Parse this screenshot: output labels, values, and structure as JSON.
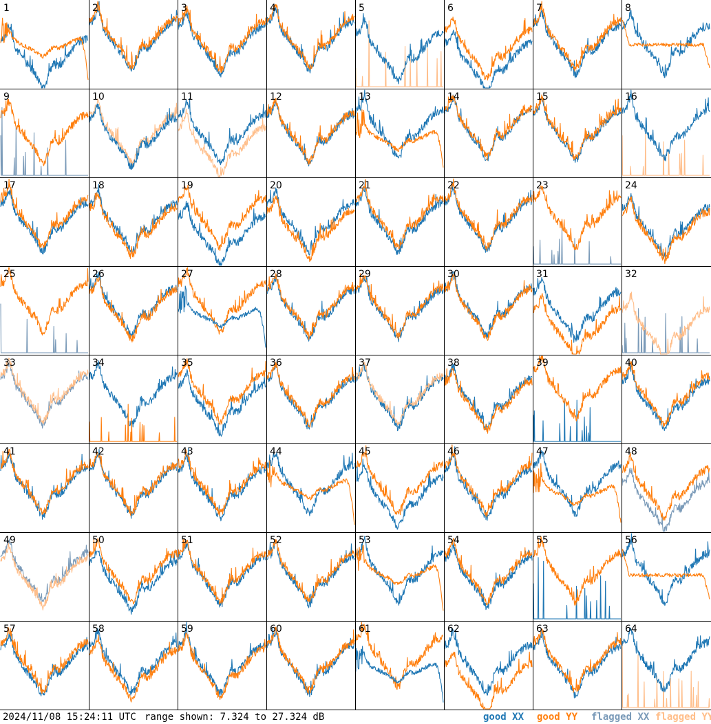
{
  "footer": {
    "timestamp": "2024/11/08 15:24:11 UTC",
    "range_text": "range shown: 7.324 to 27.324 dB"
  },
  "legend": [
    {
      "word": "good",
      "pol": "XX",
      "color": "#1f77b4"
    },
    {
      "word": "good",
      "pol": "YY",
      "color": "#ff7f0e"
    },
    {
      "word": "flagged",
      "pol": "XX",
      "color": "#7a9ab8"
    },
    {
      "word": "flagged",
      "pol": "YY",
      "color": "#ffbe8a"
    }
  ],
  "chart_data": {
    "type": "line",
    "layout": "8x8 small multiples of bandpass spectra",
    "y_range_db": [
      7.324,
      27.324
    ],
    "grid": false,
    "panels": [
      {
        "n": "1",
        "xx": {
          "s": "good",
          "p": "normal",
          "lvl": 0.35
        },
        "yy": {
          "s": "good",
          "p": "dropout",
          "lvl": 0.5
        },
        "top": "yy"
      },
      {
        "n": "2",
        "xx": {
          "s": "good",
          "p": "normal",
          "lvl": 0.55
        },
        "yy": {
          "s": "good",
          "p": "normal",
          "lvl": 0.58
        },
        "top": "yy"
      },
      {
        "n": "3",
        "xx": {
          "s": "good",
          "p": "normal",
          "lvl": 0.5
        },
        "yy": {
          "s": "good",
          "p": "normal",
          "lvl": 0.55
        },
        "top": "yy"
      },
      {
        "n": "4",
        "xx": {
          "s": "good",
          "p": "normal",
          "lvl": 0.55
        },
        "yy": {
          "s": "good",
          "p": "normal",
          "lvl": 0.58
        },
        "top": "yy"
      },
      {
        "n": "5",
        "xx": {
          "s": "good",
          "p": "normal",
          "lvl": 0.42
        },
        "yy": {
          "s": "flagged",
          "p": "spikes"
        },
        "top": "xx"
      },
      {
        "n": "6",
        "xx": {
          "s": "good",
          "p": "normal",
          "lvl": 0.3
        },
        "yy": {
          "s": "good",
          "p": "normal",
          "lvl": 0.45
        },
        "top": "yy"
      },
      {
        "n": "7",
        "xx": {
          "s": "good",
          "p": "normal",
          "lvl": 0.5
        },
        "yy": {
          "s": "good",
          "p": "normal",
          "lvl": 0.55
        },
        "top": "yy"
      },
      {
        "n": "8",
        "xx": {
          "s": "good",
          "p": "normal",
          "lvl": 0.5
        },
        "yy": {
          "s": "good",
          "p": "flat",
          "lvl": 0.5
        },
        "top": "yy"
      },
      {
        "n": "9",
        "xx": {
          "s": "flagged",
          "p": "spikes"
        },
        "yy": {
          "s": "good",
          "p": "normal",
          "lvl": 0.5
        },
        "top": "yy"
      },
      {
        "n": "10",
        "xx": {
          "s": "good",
          "p": "normal",
          "lvl": 0.45
        },
        "yy": {
          "s": "flagged",
          "p": "normal",
          "lvl": 0.5
        },
        "top": "xx"
      },
      {
        "n": "11",
        "xx": {
          "s": "good",
          "p": "normal",
          "lvl": 0.5
        },
        "yy": {
          "s": "flagged",
          "p": "normal",
          "lvl": 0.35
        },
        "top": "xx"
      },
      {
        "n": "12",
        "xx": {
          "s": "good",
          "p": "normal",
          "lvl": 0.5
        },
        "yy": {
          "s": "good",
          "p": "normal",
          "lvl": 0.52
        },
        "top": "yy"
      },
      {
        "n": "13",
        "xx": {
          "s": "good",
          "p": "normal",
          "lvl": 0.55
        },
        "yy": {
          "s": "good",
          "p": "dropout",
          "lvl": 0.45
        },
        "top": "yy"
      },
      {
        "n": "14",
        "xx": {
          "s": "good",
          "p": "normal",
          "lvl": 0.55
        },
        "yy": {
          "s": "good",
          "p": "normal",
          "lvl": 0.57
        },
        "top": "yy"
      },
      {
        "n": "15",
        "xx": {
          "s": "good",
          "p": "normal",
          "lvl": 0.53
        },
        "yy": {
          "s": "good",
          "p": "normal",
          "lvl": 0.55
        },
        "top": "yy"
      },
      {
        "n": "16",
        "xx": {
          "s": "good",
          "p": "normal",
          "lvl": 0.55
        },
        "yy": {
          "s": "flagged",
          "p": "spikes"
        },
        "top": "xx"
      },
      {
        "n": "17",
        "xx": {
          "s": "good",
          "p": "normal",
          "lvl": 0.5
        },
        "yy": {
          "s": "good",
          "p": "normal",
          "lvl": 0.55
        },
        "top": "yy"
      },
      {
        "n": "18",
        "xx": {
          "s": "good",
          "p": "normal",
          "lvl": 0.5
        },
        "yy": {
          "s": "good",
          "p": "normal",
          "lvl": 0.45
        },
        "top": "yy"
      },
      {
        "n": "19",
        "xx": {
          "s": "good",
          "p": "normal",
          "lvl": 0.35
        },
        "yy": {
          "s": "good",
          "p": "normal",
          "lvl": 0.55
        },
        "top": "yy"
      },
      {
        "n": "20",
        "xx": {
          "s": "good",
          "p": "normal",
          "lvl": 0.5
        },
        "yy": {
          "s": "good",
          "p": "normal",
          "lvl": 0.42
        },
        "top": "yy"
      },
      {
        "n": "21",
        "xx": {
          "s": "good",
          "p": "normal",
          "lvl": 0.5
        },
        "yy": {
          "s": "good",
          "p": "normal",
          "lvl": 0.55
        },
        "top": "yy"
      },
      {
        "n": "22",
        "xx": {
          "s": "good",
          "p": "normal",
          "lvl": 0.52
        },
        "yy": {
          "s": "good",
          "p": "normal",
          "lvl": 0.55
        },
        "top": "yy"
      },
      {
        "n": "23",
        "xx": {
          "s": "flagged",
          "p": "spikes"
        },
        "yy": {
          "s": "good",
          "p": "normal",
          "lvl": 0.55
        },
        "top": "yy"
      },
      {
        "n": "24",
        "xx": {
          "s": "good",
          "p": "normal",
          "lvl": 0.45
        },
        "yy": {
          "s": "good",
          "p": "normal",
          "lvl": 0.4
        },
        "top": "yy"
      },
      {
        "n": "25",
        "xx": {
          "s": "flagged",
          "p": "spikes"
        },
        "yy": {
          "s": "good",
          "p": "normal",
          "lvl": 0.6
        },
        "top": "yy"
      },
      {
        "n": "26",
        "xx": {
          "s": "good",
          "p": "normal",
          "lvl": 0.55
        },
        "yy": {
          "s": "good",
          "p": "normal",
          "lvl": 0.52
        },
        "top": "yy"
      },
      {
        "n": "27",
        "xx": {
          "s": "good",
          "p": "dropout",
          "lvl": 0.45
        },
        "yy": {
          "s": "good",
          "p": "normal",
          "lvl": 0.6
        },
        "top": "xx"
      },
      {
        "n": "28",
        "xx": {
          "s": "good",
          "p": "normal",
          "lvl": 0.52
        },
        "yy": {
          "s": "good",
          "p": "normal",
          "lvl": 0.55
        },
        "top": "yy"
      },
      {
        "n": "29",
        "xx": {
          "s": "good",
          "p": "normal",
          "lvl": 0.52
        },
        "yy": {
          "s": "good",
          "p": "normal",
          "lvl": 0.55
        },
        "top": "yy"
      },
      {
        "n": "30",
        "xx": {
          "s": "good",
          "p": "normal",
          "lvl": 0.55
        },
        "yy": {
          "s": "good",
          "p": "normal",
          "lvl": 0.53
        },
        "top": "yy"
      },
      {
        "n": "31",
        "xx": {
          "s": "good",
          "p": "normal",
          "lvl": 0.5
        },
        "yy": {
          "s": "good",
          "p": "normal",
          "lvl": 0.3
        },
        "top": "yy"
      },
      {
        "n": "32",
        "xx": {
          "s": "flagged",
          "p": "spikes"
        },
        "yy": {
          "s": "flagged",
          "p": "normal",
          "lvl": 0.3
        },
        "top": "yy"
      },
      {
        "n": "33",
        "xx": {
          "s": "flagged",
          "p": "normal",
          "lvl": 0.55
        },
        "yy": {
          "s": "flagged",
          "p": "normal",
          "lvl": 0.58
        },
        "top": "yy"
      },
      {
        "n": "34",
        "xx": {
          "s": "good",
          "p": "normal",
          "lvl": 0.55
        },
        "yy": {
          "s": "good",
          "p": "spikes"
        },
        "top": "yy"
      },
      {
        "n": "35",
        "xx": {
          "s": "good",
          "p": "normal",
          "lvl": 0.45
        },
        "yy": {
          "s": "good",
          "p": "normal",
          "lvl": 0.58
        },
        "top": "yy"
      },
      {
        "n": "36",
        "xx": {
          "s": "good",
          "p": "normal",
          "lvl": 0.52
        },
        "yy": {
          "s": "good",
          "p": "normal",
          "lvl": 0.55
        },
        "top": "yy"
      },
      {
        "n": "37",
        "xx": {
          "s": "good",
          "p": "normal",
          "lvl": 0.52
        },
        "yy": {
          "s": "flagged",
          "p": "normal",
          "lvl": 0.55
        },
        "top": "yy"
      },
      {
        "n": "38",
        "xx": {
          "s": "good",
          "p": "normal",
          "lvl": 0.52
        },
        "yy": {
          "s": "good",
          "p": "normal",
          "lvl": 0.48
        },
        "top": "yy"
      },
      {
        "n": "39",
        "xx": {
          "s": "good",
          "p": "spikes"
        },
        "yy": {
          "s": "good",
          "p": "normal",
          "lvl": 0.62
        },
        "top": "yy"
      },
      {
        "n": "40",
        "xx": {
          "s": "good",
          "p": "normal",
          "lvl": 0.5
        },
        "yy": {
          "s": "good",
          "p": "normal",
          "lvl": 0.55
        },
        "top": "yy"
      },
      {
        "n": "41",
        "xx": {
          "s": "good",
          "p": "normal",
          "lvl": 0.52
        },
        "yy": {
          "s": "good",
          "p": "normal",
          "lvl": 0.55
        },
        "top": "yy"
      },
      {
        "n": "42",
        "xx": {
          "s": "good",
          "p": "normal",
          "lvl": 0.52
        },
        "yy": {
          "s": "good",
          "p": "normal",
          "lvl": 0.55
        },
        "top": "yy"
      },
      {
        "n": "43",
        "xx": {
          "s": "good",
          "p": "normal",
          "lvl": 0.5
        },
        "yy": {
          "s": "good",
          "p": "normal",
          "lvl": 0.55
        },
        "top": "yy"
      },
      {
        "n": "44",
        "xx": {
          "s": "good",
          "p": "normal",
          "lvl": 0.55
        },
        "yy": {
          "s": "good",
          "p": "dropout",
          "lvl": 0.52
        },
        "top": "yy"
      },
      {
        "n": "45",
        "xx": {
          "s": "good",
          "p": "normal",
          "lvl": 0.4
        },
        "yy": {
          "s": "good",
          "p": "normal",
          "lvl": 0.55
        },
        "top": "yy"
      },
      {
        "n": "46",
        "xx": {
          "s": "good",
          "p": "normal",
          "lvl": 0.5
        },
        "yy": {
          "s": "good",
          "p": "normal",
          "lvl": 0.55
        },
        "top": "yy"
      },
      {
        "n": "47",
        "xx": {
          "s": "good",
          "p": "normal",
          "lvl": 0.55
        },
        "yy": {
          "s": "good",
          "p": "dropout",
          "lvl": 0.45
        },
        "top": "yy"
      },
      {
        "n": "48",
        "xx": {
          "s": "flagged",
          "p": "normal",
          "lvl": 0.35
        },
        "yy": {
          "s": "good",
          "p": "normal",
          "lvl": 0.5
        },
        "top": "yy"
      },
      {
        "n": "49",
        "xx": {
          "s": "flagged",
          "p": "normal",
          "lvl": 0.55
        },
        "yy": {
          "s": "flagged",
          "p": "normal",
          "lvl": 0.5
        },
        "top": "yy"
      },
      {
        "n": "50",
        "xx": {
          "s": "good",
          "p": "normal",
          "lvl": 0.45
        },
        "yy": {
          "s": "good",
          "p": "normal",
          "lvl": 0.55
        },
        "top": "yy"
      },
      {
        "n": "51",
        "xx": {
          "s": "good",
          "p": "normal",
          "lvl": 0.52
        },
        "yy": {
          "s": "good",
          "p": "normal",
          "lvl": 0.55
        },
        "top": "yy"
      },
      {
        "n": "52",
        "xx": {
          "s": "good",
          "p": "normal",
          "lvl": 0.52
        },
        "yy": {
          "s": "good",
          "p": "normal",
          "lvl": 0.55
        },
        "top": "yy"
      },
      {
        "n": "53",
        "xx": {
          "s": "good",
          "p": "normal",
          "lvl": 0.55
        },
        "yy": {
          "s": "good",
          "p": "dropout",
          "lvl": 0.55
        },
        "top": "yy"
      },
      {
        "n": "54",
        "xx": {
          "s": "good",
          "p": "normal",
          "lvl": 0.5
        },
        "yy": {
          "s": "good",
          "p": "normal",
          "lvl": 0.55
        },
        "top": "yy"
      },
      {
        "n": "55",
        "xx": {
          "s": "good",
          "p": "spikes"
        },
        "yy": {
          "s": "good",
          "p": "normal",
          "lvl": 0.55
        },
        "top": "yy"
      },
      {
        "n": "56",
        "xx": {
          "s": "good",
          "p": "normal",
          "lvl": 0.55
        },
        "yy": {
          "s": "good",
          "p": "flat",
          "lvl": 0.52
        },
        "top": "yy"
      },
      {
        "n": "57",
        "xx": {
          "s": "good",
          "p": "normal",
          "lvl": 0.5
        },
        "yy": {
          "s": "good",
          "p": "normal",
          "lvl": 0.55
        },
        "top": "yy"
      },
      {
        "n": "58",
        "xx": {
          "s": "good",
          "p": "normal",
          "lvl": 0.52
        },
        "yy": {
          "s": "good",
          "p": "normal",
          "lvl": 0.45
        },
        "top": "yy"
      },
      {
        "n": "59",
        "xx": {
          "s": "good",
          "p": "normal",
          "lvl": 0.52
        },
        "yy": {
          "s": "good",
          "p": "normal",
          "lvl": 0.48
        },
        "top": "yy"
      },
      {
        "n": "60",
        "xx": {
          "s": "good",
          "p": "normal",
          "lvl": 0.52
        },
        "yy": {
          "s": "good",
          "p": "normal",
          "lvl": 0.55
        },
        "top": "yy"
      },
      {
        "n": "61",
        "xx": {
          "s": "good",
          "p": "dropout",
          "lvl": 0.45
        },
        "yy": {
          "s": "good",
          "p": "normal",
          "lvl": 0.6
        },
        "top": "xx"
      },
      {
        "n": "62",
        "xx": {
          "s": "good",
          "p": "normal",
          "lvl": 0.52
        },
        "yy": {
          "s": "good",
          "p": "normal",
          "lvl": 0.3
        },
        "top": "yy"
      },
      {
        "n": "63",
        "xx": {
          "s": "good",
          "p": "normal",
          "lvl": 0.5
        },
        "yy": {
          "s": "good",
          "p": "normal",
          "lvl": 0.55
        },
        "top": "yy"
      },
      {
        "n": "64",
        "xx": {
          "s": "good",
          "p": "normal",
          "lvl": 0.55
        },
        "yy": {
          "s": "flagged",
          "p": "spikes"
        },
        "top": "xx"
      }
    ]
  }
}
